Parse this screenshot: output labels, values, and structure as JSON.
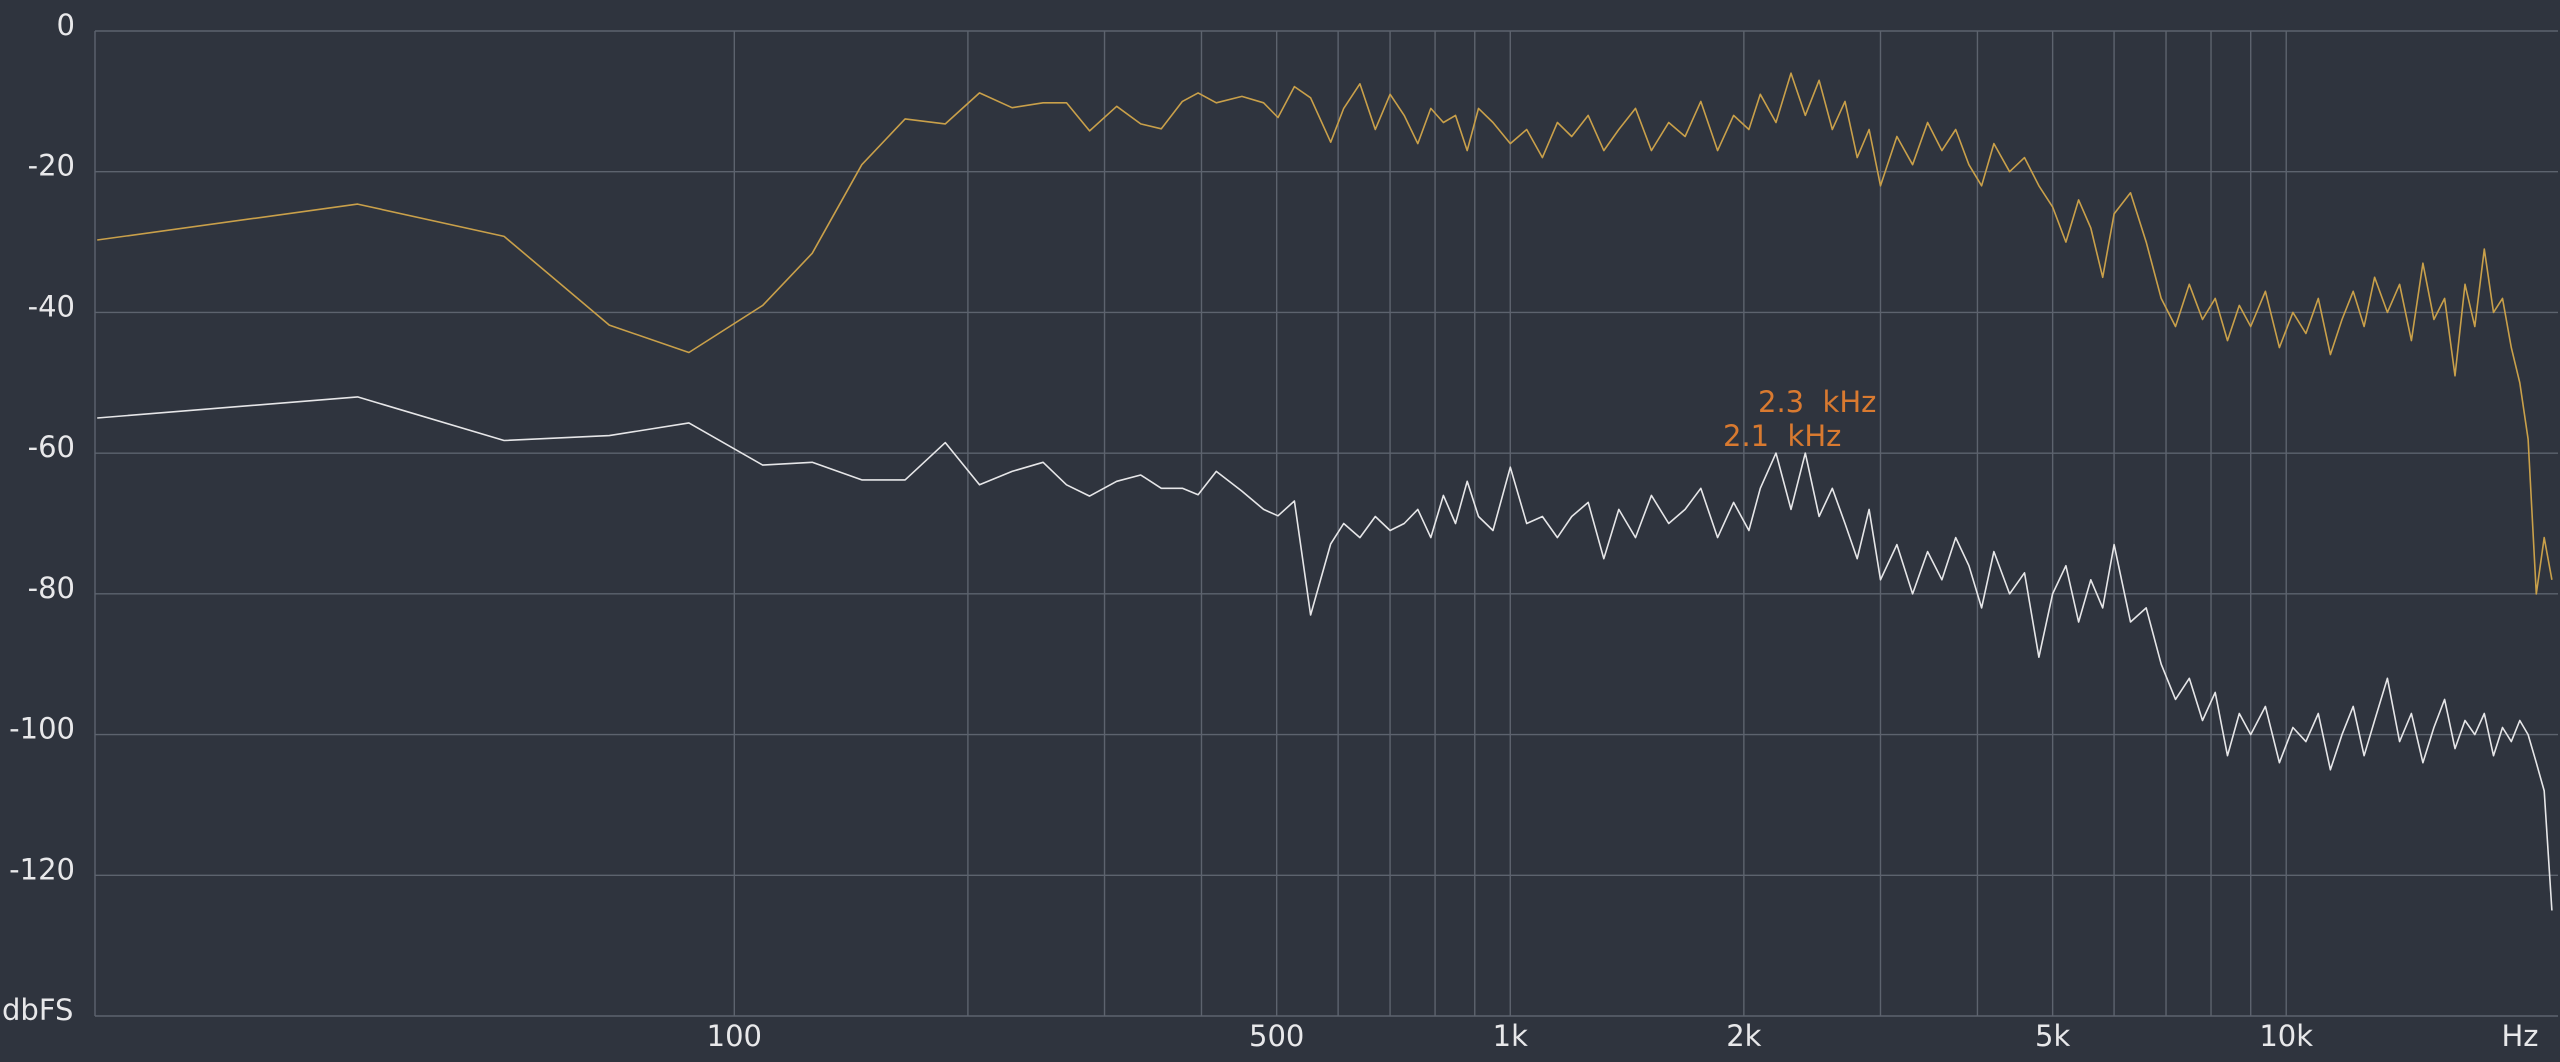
{
  "chart_data": {
    "type": "line",
    "log_x": true,
    "grid": true,
    "y_label": "dbFS",
    "x_unit": "Hz",
    "annotations": [
      "2.3  kHz",
      "2.1  kHz"
    ],
    "xlim": [
      15,
      22400
    ],
    "ylim": [
      -140,
      0
    ],
    "yticks": [
      0,
      -20,
      -40,
      -60,
      -80,
      -100,
      -120
    ],
    "xticks": [
      100,
      500,
      {
        "value": 1000,
        "label": "1k"
      },
      {
        "value": 2000,
        "label": "2k"
      },
      {
        "value": 5000,
        "label": "5k"
      },
      {
        "value": 10000,
        "label": "10k"
      }
    ],
    "x_minor_grid": [
      200,
      300,
      400,
      600,
      700,
      800,
      900,
      3000,
      4000,
      6000,
      7000,
      8000,
      9000
    ],
    "x": [
      15.1,
      32.7,
      50.5,
      69,
      87.4,
      108.8,
      126,
      146,
      166,
      187,
      207,
      228,
      250,
      268,
      287,
      311,
      334,
      355,
      378,
      396,
      418,
      451,
      481,
      502,
      527,
      553,
      587,
      610,
      640,
      670,
      700,
      730,
      760,
      790,
      820,
      850,
      880,
      910,
      950,
      1000,
      1050,
      1100,
      1150,
      1200,
      1260,
      1320,
      1380,
      1450,
      1520,
      1600,
      1680,
      1760,
      1850,
      1940,
      2030,
      2100,
      2200,
      2300,
      2400,
      2500,
      2600,
      2700,
      2800,
      2900,
      3000,
      3150,
      3300,
      3450,
      3600,
      3750,
      3900,
      4050,
      4200,
      4400,
      4600,
      4800,
      5000,
      5200,
      5400,
      5600,
      5800,
      6000,
      6300,
      6600,
      6900,
      7200,
      7500,
      7800,
      8100,
      8400,
      8700,
      9000,
      9400,
      9800,
      10200,
      10600,
      11000,
      11400,
      11800,
      12200,
      12600,
      13000,
      13500,
      14000,
      14500,
      15000,
      15500,
      16000,
      16500,
      17000,
      17500,
      18000,
      18500,
      19000,
      19500,
      20000,
      20500,
      21000,
      21500,
      22000
    ],
    "series": [
      {
        "color": "#c9a04a",
        "values": [
          -29.7,
          -24.6,
          -29.2,
          -41.8,
          -45.7,
          -39,
          -31.6,
          -19,
          -12.5,
          -13.2,
          -8.8,
          -10.9,
          -10.2,
          -10.2,
          -14.2,
          -10.7,
          -13.2,
          -13.9,
          -10,
          -8.8,
          -10.2,
          -9.3,
          -10.2,
          -12.3,
          -7.9,
          -9.5,
          -15.8,
          -11,
          -7.5,
          -14,
          -9,
          -12,
          -16,
          -11,
          -13,
          -12,
          -17,
          -11,
          -13,
          -16,
          -14,
          -18,
          -13,
          -15,
          -12,
          -17,
          -14,
          -11,
          -17,
          -13,
          -15,
          -10,
          -17,
          -12,
          -14,
          -9,
          -13,
          -6,
          -12,
          -7,
          -14,
          -10,
          -18,
          -14,
          -22,
          -15,
          -19,
          -13,
          -17,
          -14,
          -19,
          -22,
          -16,
          -20,
          -18,
          -22,
          -25,
          -30,
          -24,
          -28,
          -35,
          -26,
          -23,
          -30,
          -38,
          -42,
          -36,
          -41,
          -38,
          -44,
          -39,
          -42,
          -37,
          -45,
          -40,
          -43,
          -38,
          -46,
          -41,
          -37,
          -42,
          -35,
          -40,
          -36,
          -44,
          -33,
          -41,
          -38,
          -49,
          -36,
          -42,
          -31,
          -40,
          -38,
          -45,
          -50,
          -58,
          -80,
          -72,
          -78
        ]
      },
      {
        "color": "#e6e6e8",
        "values": [
          -55,
          -52,
          -58.2,
          -57.5,
          -55.7,
          -61.7,
          -61.3,
          -63.8,
          -63.8,
          -58.5,
          -64.5,
          -62.6,
          -61.3,
          -64.5,
          -66.1,
          -64,
          -63.1,
          -65,
          -65,
          -65.9,
          -62.6,
          -65.4,
          -68,
          -68.9,
          -66.8,
          -83,
          -72.9,
          -70,
          -72,
          -69,
          -71,
          -70,
          -68,
          -72,
          -66,
          -70,
          -64,
          -69,
          -71,
          -62,
          -70,
          -69,
          -72,
          -69,
          -67,
          -75,
          -68,
          -72,
          -66,
          -70,
          -68,
          -65,
          -72,
          -67,
          -71,
          -65,
          -60,
          -68,
          -60,
          -69,
          -65,
          -70,
          -75,
          -68,
          -78,
          -73,
          -80,
          -74,
          -78,
          -72,
          -76,
          -82,
          -74,
          -80,
          -77,
          -89,
          -80,
          -76,
          -84,
          -78,
          -82,
          -73,
          -84,
          -82,
          -90,
          -95,
          -92,
          -98,
          -94,
          -103,
          -97,
          -100,
          -96,
          -104,
          -99,
          -101,
          -97,
          -105,
          -100,
          -96,
          -103,
          -98,
          -92,
          -101,
          -97,
          -104,
          -99,
          -95,
          -102,
          -98,
          -100,
          -97,
          -103,
          -99,
          -101,
          -98,
          -100,
          -104,
          -108,
          -125
        ]
      }
    ]
  }
}
